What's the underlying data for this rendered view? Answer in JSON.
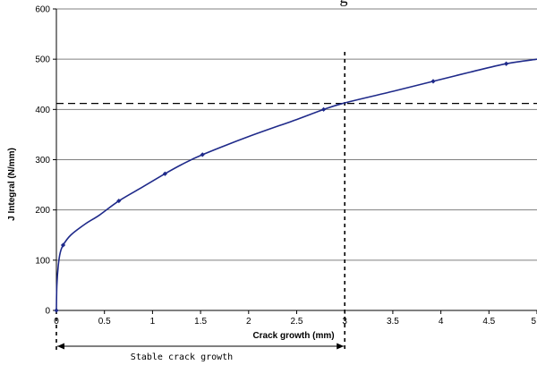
{
  "chart_data": {
    "type": "line",
    "title_fragment": "g",
    "xlabel": "Crack growth (mm)",
    "ylabel": "J Integral (N/mm)",
    "xlim": [
      0,
      5
    ],
    "ylim": [
      0,
      600
    ],
    "x_ticks": [
      "0",
      "0.5",
      "1",
      "1.5",
      "2",
      "2.5",
      "3",
      "3.5",
      "4",
      "4.5",
      "5"
    ],
    "y_ticks": [
      "0",
      "100",
      "200",
      "300",
      "400",
      "500",
      "600"
    ],
    "grid": "horizontal",
    "series": [
      {
        "color": "#1f2a8a",
        "curve": [
          [
            0,
            0
          ],
          [
            0.005,
            50
          ],
          [
            0.02,
            90
          ],
          [
            0.04,
            115
          ],
          [
            0.07,
            130
          ],
          [
            0.15,
            150
          ],
          [
            0.3,
            172
          ],
          [
            0.45,
            190
          ],
          [
            0.65,
            218
          ],
          [
            0.9,
            246
          ],
          [
            1.13,
            272
          ],
          [
            1.3,
            290
          ],
          [
            1.52,
            310
          ],
          [
            2.0,
            346
          ],
          [
            2.5,
            380
          ],
          [
            2.78,
            400
          ],
          [
            3.0,
            413
          ],
          [
            3.5,
            436
          ],
          [
            3.92,
            456
          ],
          [
            4.3,
            474
          ],
          [
            4.68,
            491
          ],
          [
            5.0,
            500
          ]
        ],
        "markers": [
          [
            0,
            0
          ],
          [
            0.07,
            130
          ],
          [
            0.65,
            218
          ],
          [
            1.13,
            272
          ],
          [
            1.52,
            310
          ],
          [
            2.78,
            400
          ],
          [
            3.92,
            456
          ],
          [
            4.68,
            491
          ]
        ]
      }
    ],
    "reference_lines": {
      "horizontal_y": 412,
      "vertical_x": 3.0
    },
    "annotation": {
      "text": "Stable crack growth",
      "from_x": 0,
      "to_x": 3.0
    }
  }
}
